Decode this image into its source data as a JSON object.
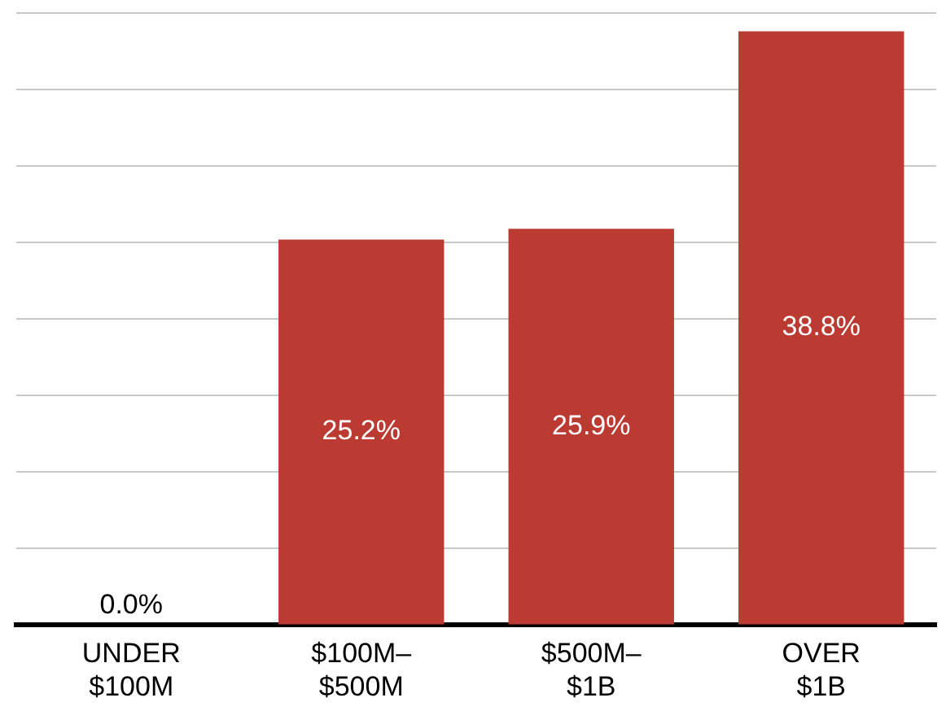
{
  "chart_data": {
    "type": "bar",
    "categories": [
      "UNDER $100M",
      "$100M–$500M",
      "$500M–$1B",
      "OVER $1B"
    ],
    "values": [
      0.0,
      25.2,
      25.9,
      38.8
    ],
    "value_labels": [
      "0.0%",
      "25.2%",
      "25.9%",
      "38.8%"
    ],
    "color": "#bb3a32",
    "ylim": [
      0,
      40
    ],
    "yticks": [
      {
        "value": 0,
        "label": null
      },
      {
        "value": 5,
        "label": null
      },
      {
        "value": 10,
        "label": null
      },
      {
        "value": 15,
        "label": null
      },
      {
        "value": 20,
        "label": null
      },
      {
        "value": 25,
        "label": null
      },
      {
        "value": 30,
        "label": null
      },
      {
        "value": 35,
        "label": null
      },
      {
        "value": 40,
        "label": null
      }
    ],
    "tick_labels": "x",
    "grid": "y",
    "legend": false
  }
}
